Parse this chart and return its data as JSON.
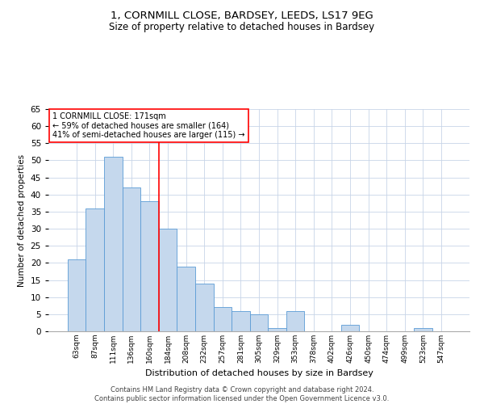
{
  "title_line1": "1, CORNMILL CLOSE, BARDSEY, LEEDS, LS17 9EG",
  "title_line2": "Size of property relative to detached houses in Bardsey",
  "xlabel": "Distribution of detached houses by size in Bardsey",
  "ylabel": "Number of detached properties",
  "categories": [
    "63sqm",
    "87sqm",
    "111sqm",
    "136sqm",
    "160sqm",
    "184sqm",
    "208sqm",
    "232sqm",
    "257sqm",
    "281sqm",
    "305sqm",
    "329sqm",
    "353sqm",
    "378sqm",
    "402sqm",
    "426sqm",
    "450sqm",
    "474sqm",
    "499sqm",
    "523sqm",
    "547sqm"
  ],
  "values": [
    21,
    36,
    51,
    42,
    38,
    30,
    19,
    14,
    7,
    6,
    5,
    1,
    6,
    0,
    0,
    2,
    0,
    0,
    0,
    1,
    0
  ],
  "bar_color": "#c5d8ed",
  "bar_edge_color": "#5b9bd5",
  "ref_line_x": 4.5,
  "ref_line_color": "red",
  "annotation_line1": "1 CORNMILL CLOSE: 171sqm",
  "annotation_line2": "← 59% of detached houses are smaller (164)",
  "annotation_line3": "41% of semi-detached houses are larger (115) →",
  "annotation_box_color": "white",
  "annotation_box_edge": "red",
  "ylim": [
    0,
    65
  ],
  "yticks": [
    0,
    5,
    10,
    15,
    20,
    25,
    30,
    35,
    40,
    45,
    50,
    55,
    60,
    65
  ],
  "grid_color": "#c8d4e8",
  "background_color": "white",
  "footer1": "Contains HM Land Registry data © Crown copyright and database right 2024.",
  "footer2": "Contains public sector information licensed under the Open Government Licence v3.0.",
  "figsize": [
    6.0,
    5.0
  ],
  "dpi": 100
}
